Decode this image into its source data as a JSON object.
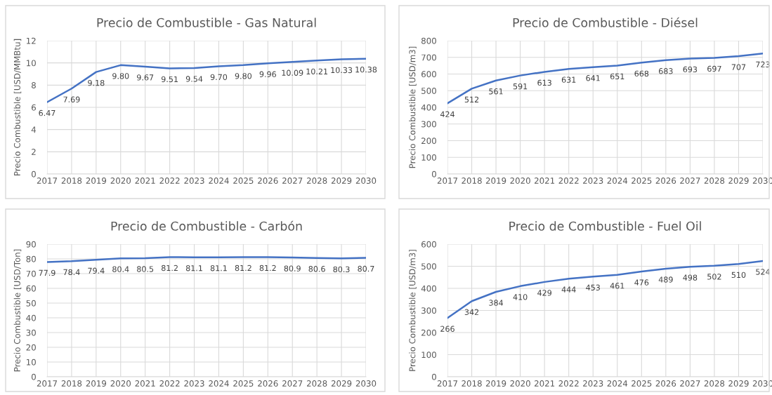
{
  "chart_data": [
    {
      "type": "line",
      "title": "Precio de Combustible - Gas Natural",
      "ylabel": "Precio Combustible [USD/MMBtu]",
      "categories": [
        "2017",
        "2018",
        "2019",
        "2020",
        "2021",
        "2022",
        "2023",
        "2024",
        "2025",
        "2026",
        "2027",
        "2028",
        "2029",
        "2030"
      ],
      "series": [
        {
          "color": "#4472c4",
          "values": [
            6.47,
            7.69,
            9.18,
            9.8,
            9.67,
            9.51,
            9.54,
            9.7,
            9.8,
            9.96,
            10.09,
            10.21,
            10.33,
            10.38
          ],
          "value_labels": [
            "6.47",
            "7.69",
            "9.18",
            "9.80",
            "9.67",
            "9.51",
            "9.54",
            "9.70",
            "9.80",
            "9.96",
            "10.09",
            "10.21",
            "10.33",
            "10.38"
          ]
        }
      ],
      "ylim": [
        0,
        12
      ],
      "yticks": [
        0,
        2,
        4,
        6,
        8,
        10,
        12
      ],
      "grid": true,
      "legend": false,
      "marker": "none",
      "line_style": "solid"
    },
    {
      "type": "line",
      "title": "Precio de Combustible - Diésel",
      "ylabel": "Precio Combustible [USD/m3]",
      "categories": [
        "2017",
        "2018",
        "2019",
        "2020",
        "2021",
        "2022",
        "2023",
        "2024",
        "2025",
        "2026",
        "2027",
        "2028",
        "2029",
        "2030"
      ],
      "series": [
        {
          "color": "#4472c4",
          "values": [
            424,
            512,
            561,
            591,
            613,
            631,
            641,
            651,
            668,
            683,
            693,
            697,
            707,
            723
          ]
        }
      ],
      "data_labels": true,
      "ylim": [
        0,
        800
      ],
      "yticks": [
        0,
        100,
        200,
        300,
        400,
        500,
        600,
        700,
        800
      ],
      "grid": true,
      "legend": false,
      "marker": "none",
      "line_style": "solid"
    },
    {
      "type": "line",
      "title": "Precio de Combustible - Carbón",
      "ylabel": "Precio Combustible [USD/Ton]",
      "categories": [
        "2017",
        "2018",
        "2019",
        "2020",
        "2021",
        "2022",
        "2023",
        "2024",
        "2025",
        "2026",
        "2027",
        "2028",
        "2029",
        "2030"
      ],
      "series": [
        {
          "color": "#4472c4",
          "values": [
            77.9,
            78.4,
            79.4,
            80.4,
            80.5,
            81.2,
            81.1,
            81.1,
            81.2,
            81.2,
            80.9,
            80.6,
            80.3,
            80.7
          ]
        }
      ],
      "data_labels": true,
      "ylim": [
        0,
        90
      ],
      "yticks": [
        0,
        10,
        20,
        30,
        40,
        50,
        60,
        70,
        80,
        90
      ],
      "grid": true,
      "legend": false,
      "marker": "none",
      "line_style": "solid"
    },
    {
      "type": "line",
      "title": "Precio de Combustible - Fuel Oil",
      "ylabel": "Precio Combustible [USD/m3]",
      "categories": [
        "2017",
        "2018",
        "2019",
        "2020",
        "2021",
        "2022",
        "2023",
        "2024",
        "2025",
        "2026",
        "2027",
        "2028",
        "2029",
        "2030"
      ],
      "series": [
        {
          "color": "#4472c4",
          "values": [
            266,
            342,
            384,
            410,
            429,
            444,
            453,
            461,
            476,
            489,
            498,
            502,
            510,
            524
          ]
        }
      ],
      "data_labels": true,
      "ylim": [
        0,
        600
      ],
      "yticks": [
        0,
        100,
        200,
        300,
        400,
        500,
        600
      ],
      "grid": true,
      "legend": false,
      "marker": "none",
      "line_style": "solid"
    }
  ]
}
